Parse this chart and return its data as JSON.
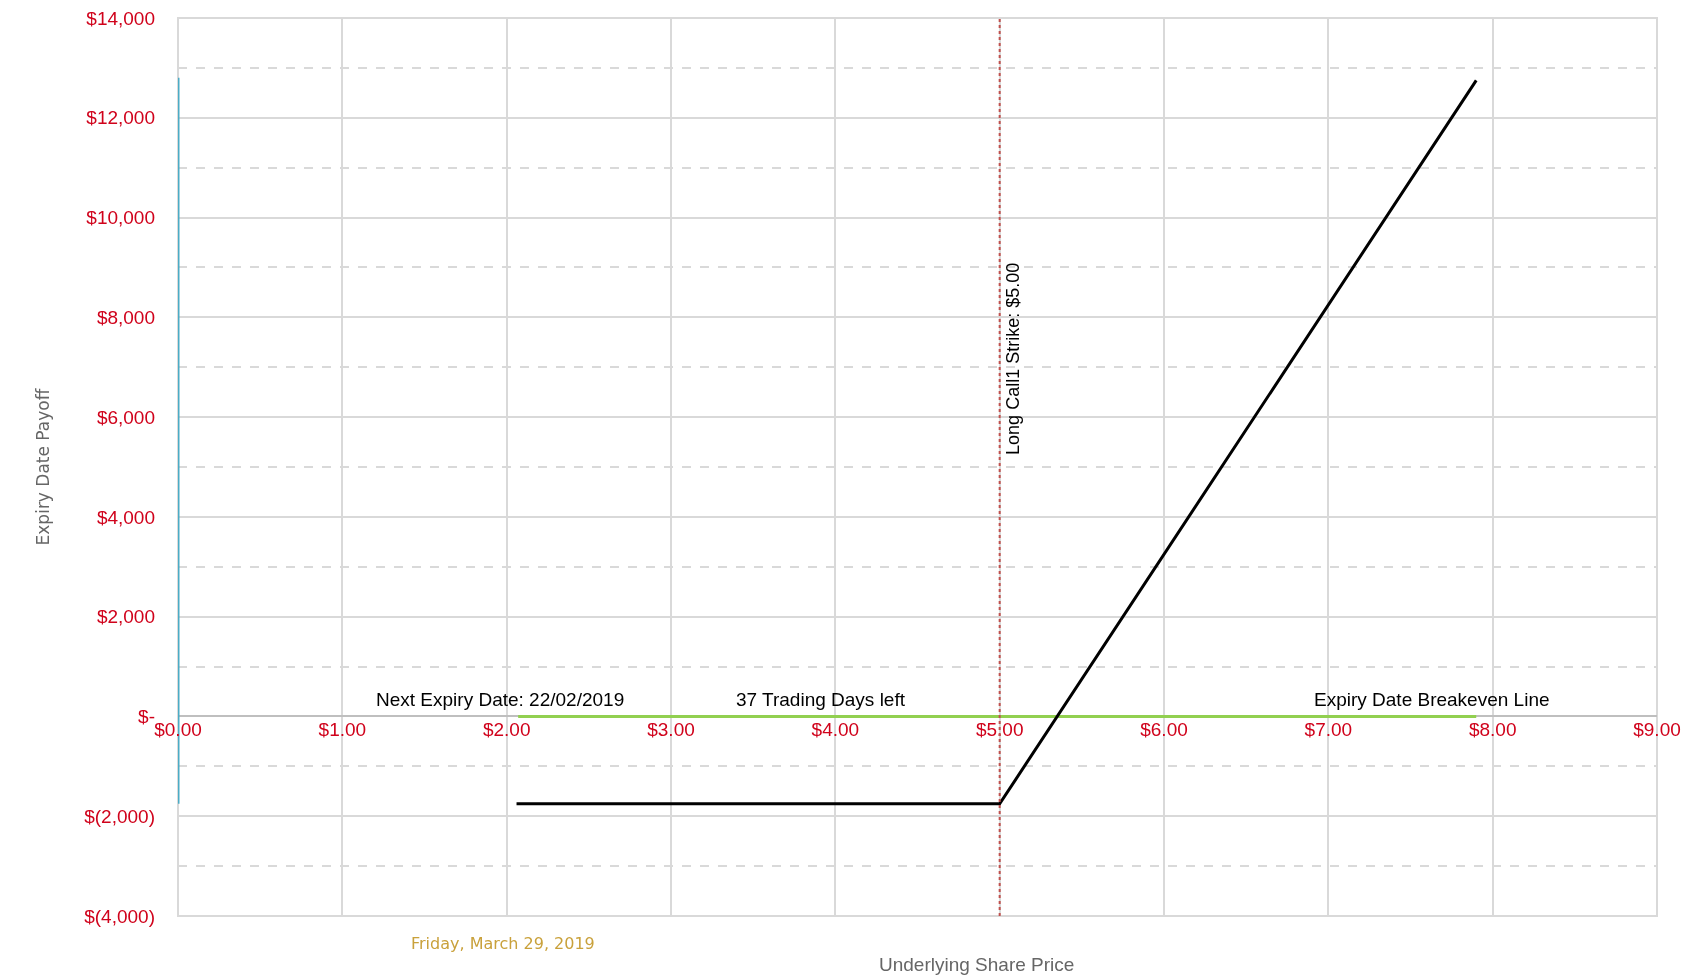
{
  "chart_data": {
    "type": "line",
    "xlabel": "Underlying Share Price",
    "ylabel": "Expiry Date Payoff",
    "xlim": [
      0,
      9
    ],
    "xticks": [
      {
        "value": 0,
        "label": "$0.00"
      },
      {
        "value": 1,
        "label": "$1.00"
      },
      {
        "value": 2,
        "label": "$2.00"
      },
      {
        "value": 3,
        "label": "$3.00"
      },
      {
        "value": 4,
        "label": "$4.00"
      },
      {
        "value": 5,
        "label": "$5.00"
      },
      {
        "value": 6,
        "label": "$6.00"
      },
      {
        "value": 7,
        "label": "$7.00"
      },
      {
        "value": 8,
        "label": "$8.00"
      },
      {
        "value": 9,
        "label": "$9.00"
      }
    ],
    "ylim": [
      -4000,
      14000
    ],
    "yticks": [
      {
        "value": -4000,
        "label": "$(4,000)"
      },
      {
        "value": -2000,
        "label": "$(2,000)"
      },
      {
        "value": 0,
        "label": "$-"
      },
      {
        "value": 2000,
        "label": "$2,000"
      },
      {
        "value": 4000,
        "label": "$4,000"
      },
      {
        "value": 6000,
        "label": "$6,000"
      },
      {
        "value": 8000,
        "label": "$8,000"
      },
      {
        "value": 10000,
        "label": "$10,000"
      },
      {
        "value": 12000,
        "label": "$12,000"
      },
      {
        "value": 14000,
        "label": "$14,000"
      }
    ],
    "grid": true,
    "line_style": "solid",
    "marker": "none",
    "series": [
      {
        "color": "#92d050",
        "x": [
          2.07,
          7.9
        ],
        "values": [
          0,
          0
        ]
      },
      {
        "color": "#4bacc6",
        "x": [
          0,
          0
        ],
        "values": [
          -1750,
          12800
        ]
      },
      {
        "color": "#000000",
        "x": [
          2.06,
          5.0,
          7.9
        ],
        "values": [
          -1750,
          -1750,
          12750
        ]
      }
    ],
    "ref_lines": [
      {
        "axis": "x",
        "value": 5,
        "label": "Long Call1 Strike: $5.00",
        "color": "#c0504d",
        "line_style": "dotted"
      }
    ],
    "annotations": [
      "Next Expiry Date: 22/02/2019",
      "37 Trading Days left",
      "Expiry Date Breakeven Line",
      "Friday, March 29, 2019"
    ]
  }
}
